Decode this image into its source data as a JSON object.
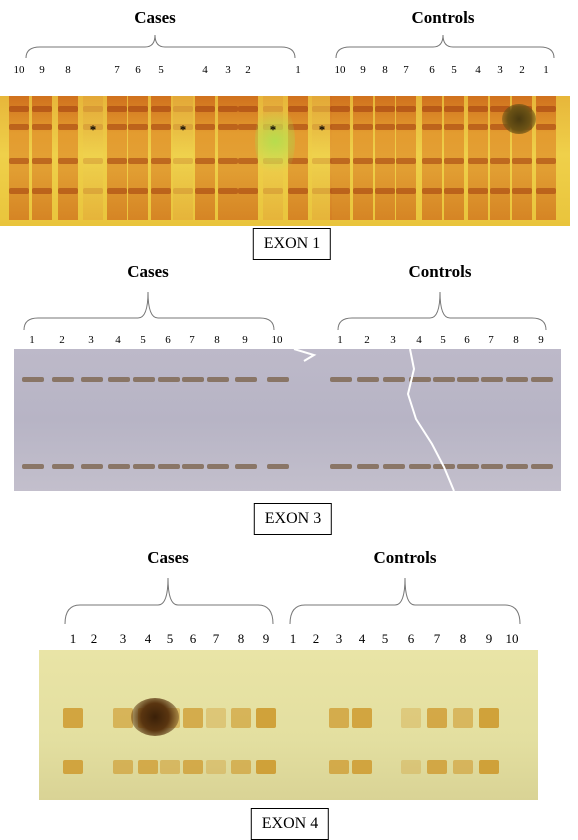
{
  "panels": [
    {
      "exon_label": "EXON 1",
      "cases_label": "Cases",
      "controls_label": "Controls",
      "cases_lanes": [
        "10",
        "9",
        "8",
        "7",
        "6",
        "5",
        "4",
        "3",
        "2",
        "1"
      ],
      "controls_lanes": [
        "10",
        "9",
        "8",
        "7",
        "6",
        "5",
        "4",
        "3",
        "2",
        "1"
      ],
      "markers": [
        "*",
        "*",
        "*",
        "*"
      ],
      "gel_color": "#e9c33a"
    },
    {
      "exon_label": "EXON 3",
      "cases_label": "Cases",
      "controls_label": "Controls",
      "cases_lanes": [
        "1",
        "2",
        "3",
        "4",
        "5",
        "6",
        "7",
        "8",
        "9",
        "10"
      ],
      "controls_lanes": [
        "1",
        "2",
        "3",
        "4",
        "5",
        "6",
        "7",
        "8",
        "9"
      ],
      "gel_color": "#b9b5c6"
    },
    {
      "exon_label": "EXON 4",
      "cases_label": "Cases",
      "controls_label": "Controls",
      "cases_lanes": [
        "1",
        "2",
        "3",
        "4",
        "5",
        "6",
        "7",
        "8",
        "9"
      ],
      "controls_lanes": [
        "1",
        "2",
        "3",
        "4",
        "5",
        "6",
        "7",
        "8",
        "9",
        "10"
      ],
      "gel_color": "#e7e3a4"
    }
  ]
}
